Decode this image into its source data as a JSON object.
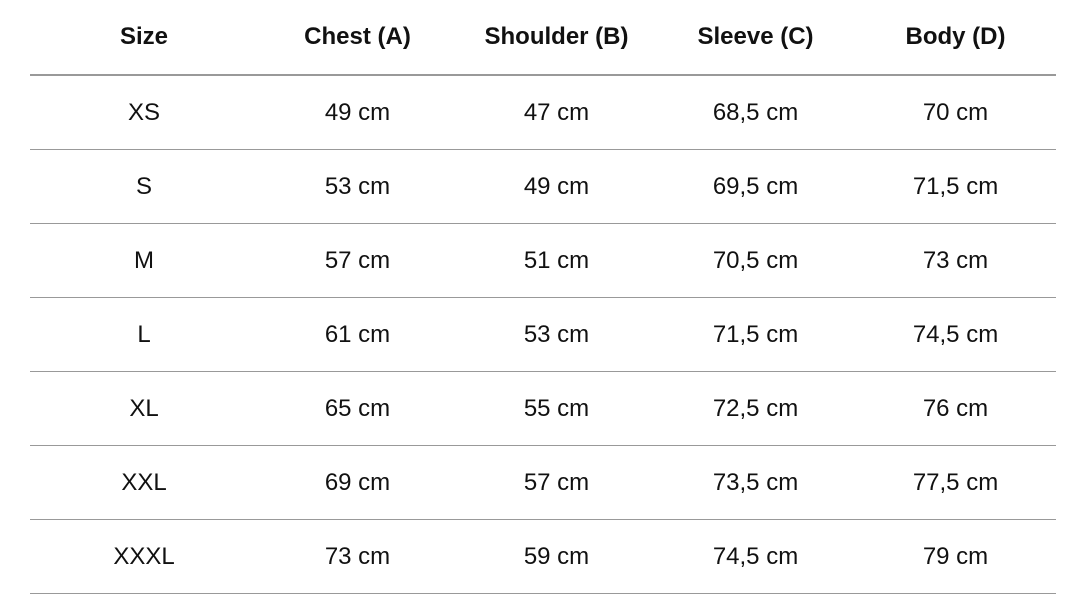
{
  "table": {
    "header": [
      "Size",
      "Chest (A)",
      "Shoulder (B)",
      "Sleeve (C)",
      "Body (D)"
    ],
    "rows": [
      [
        "XS",
        "49 cm",
        "47 cm",
        "68,5 cm",
        "70 cm"
      ],
      [
        "S",
        "53 cm",
        "49 cm",
        "69,5 cm",
        "71,5 cm"
      ],
      [
        "M",
        "57 cm",
        "51 cm",
        "70,5 cm",
        "73 cm"
      ],
      [
        "L",
        "61 cm",
        "53 cm",
        "71,5 cm",
        "74,5 cm"
      ],
      [
        "XL",
        "65 cm",
        "55 cm",
        "72,5 cm",
        "76 cm"
      ],
      [
        "XXL",
        "69 cm",
        "57 cm",
        "73,5 cm",
        "77,5 cm"
      ],
      [
        "XXXL",
        "73 cm",
        "59 cm",
        "74,5 cm",
        "79 cm"
      ]
    ]
  }
}
